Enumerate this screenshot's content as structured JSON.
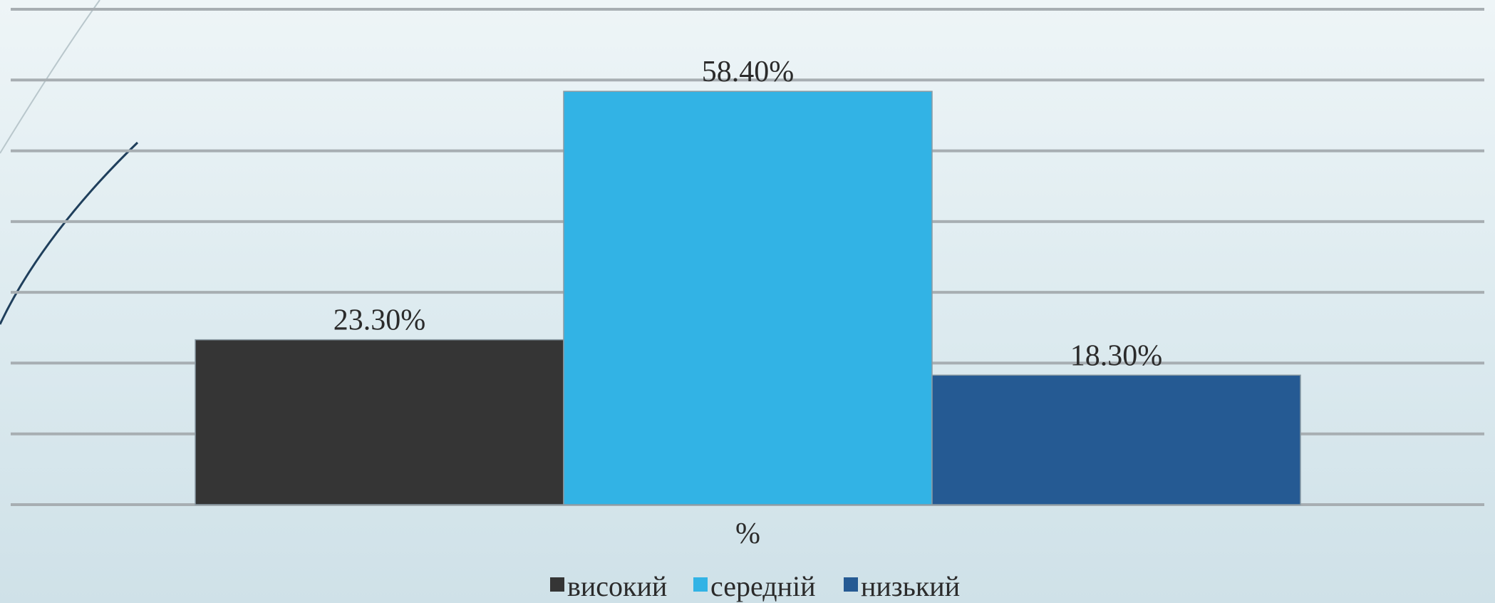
{
  "chart_data": {
    "type": "bar",
    "title": "",
    "xlabel": "",
    "ylabel": "",
    "categories": [
      "%"
    ],
    "ylim": [
      0,
      70
    ],
    "grid": true,
    "legend_position": "bottom",
    "series": [
      {
        "name": "високий",
        "values": [
          23.3
        ],
        "label": "23.30%",
        "color": "#353535"
      },
      {
        "name": "середній",
        "values": [
          58.4
        ],
        "label": "58.40%",
        "color": "#32b3e5"
      },
      {
        "name": "низький",
        "values": [
          18.3
        ],
        "label": "18.30%",
        "color": "#255a93"
      }
    ]
  }
}
